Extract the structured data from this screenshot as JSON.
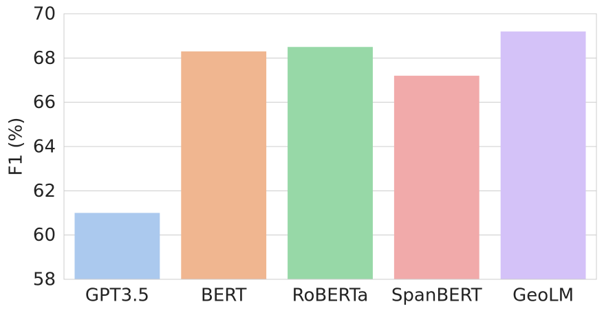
{
  "chart_data": {
    "type": "bar",
    "y_label": "F1 (%)",
    "categories": [
      "GPT3.5",
      "BERT",
      "RoBERTa",
      "SpanBERT",
      "GeoLM"
    ],
    "values": [
      61.0,
      68.3,
      68.5,
      67.2,
      69.2
    ],
    "colors": [
      "#abc9ee",
      "#f0b690",
      "#97d8a7",
      "#f1aaaa",
      "#d4c2f8"
    ],
    "ylim": [
      58,
      70
    ],
    "yticks": [
      58,
      60,
      62,
      64,
      66,
      68,
      70
    ],
    "grid": true
  }
}
